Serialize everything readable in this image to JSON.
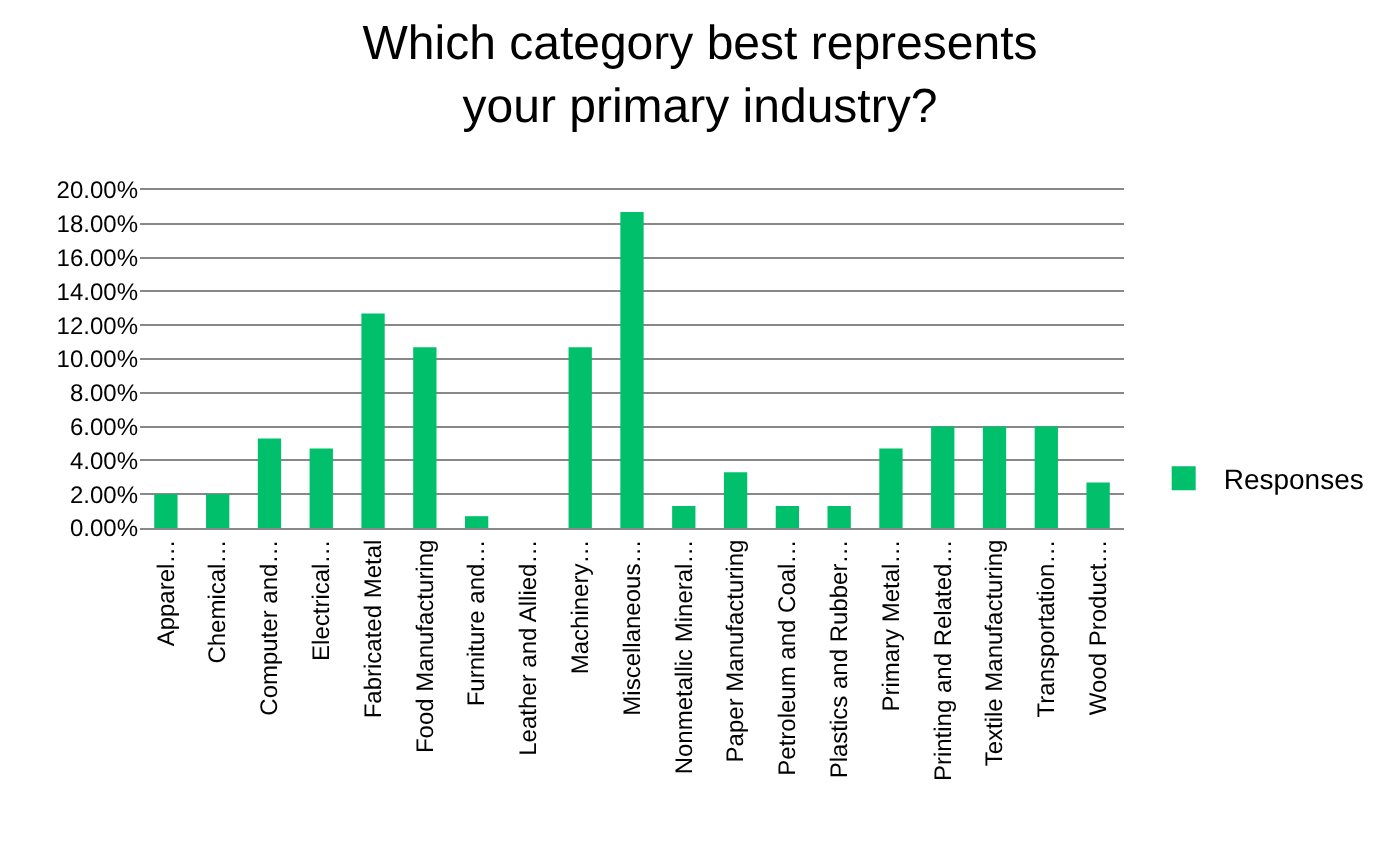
{
  "chart_data": {
    "type": "bar",
    "title": "Which category best represents your primary industry?",
    "categories": [
      "Apparel…",
      "Chemical…",
      "Computer and…",
      "Electrical…",
      "Fabricated Metal",
      "Food Manufacturing",
      "Furniture and…",
      "Leather and Allied…",
      "Machinery…",
      "Miscellaneous…",
      "Nonmetallic Mineral…",
      "Paper Manufacturing",
      "Petroleum and Coal…",
      "Plastics and Rubber…",
      "Primary Metal…",
      "Printing and Related…",
      "Textile Manufacturing",
      "Transportation…",
      "Wood Product…"
    ],
    "series": [
      {
        "name": "Responses",
        "color": "#00c06b",
        "values": [
          2.0,
          2.0,
          5.3,
          4.7,
          12.7,
          10.7,
          0.7,
          0,
          10.7,
          18.7,
          1.3,
          3.3,
          1.3,
          1.3,
          4.7,
          6.0,
          6.0,
          6.0,
          2.7
        ]
      }
    ],
    "ylim": [
      0,
      20
    ],
    "yticks": [
      {
        "value": 0,
        "label": "0.00%"
      },
      {
        "value": 2,
        "label": "2.00%"
      },
      {
        "value": 4,
        "label": "4.00%"
      },
      {
        "value": 6,
        "label": "6.00%"
      },
      {
        "value": 8,
        "label": "8.00%"
      },
      {
        "value": 10,
        "label": "10.00%"
      },
      {
        "value": 12,
        "label": "12.00%"
      },
      {
        "value": 14,
        "label": "14.00%"
      },
      {
        "value": 16,
        "label": "16.00%"
      },
      {
        "value": 18,
        "label": "18.00%"
      },
      {
        "value": 20,
        "label": "20.00%"
      }
    ],
    "grid": "y",
    "legend": "right"
  }
}
